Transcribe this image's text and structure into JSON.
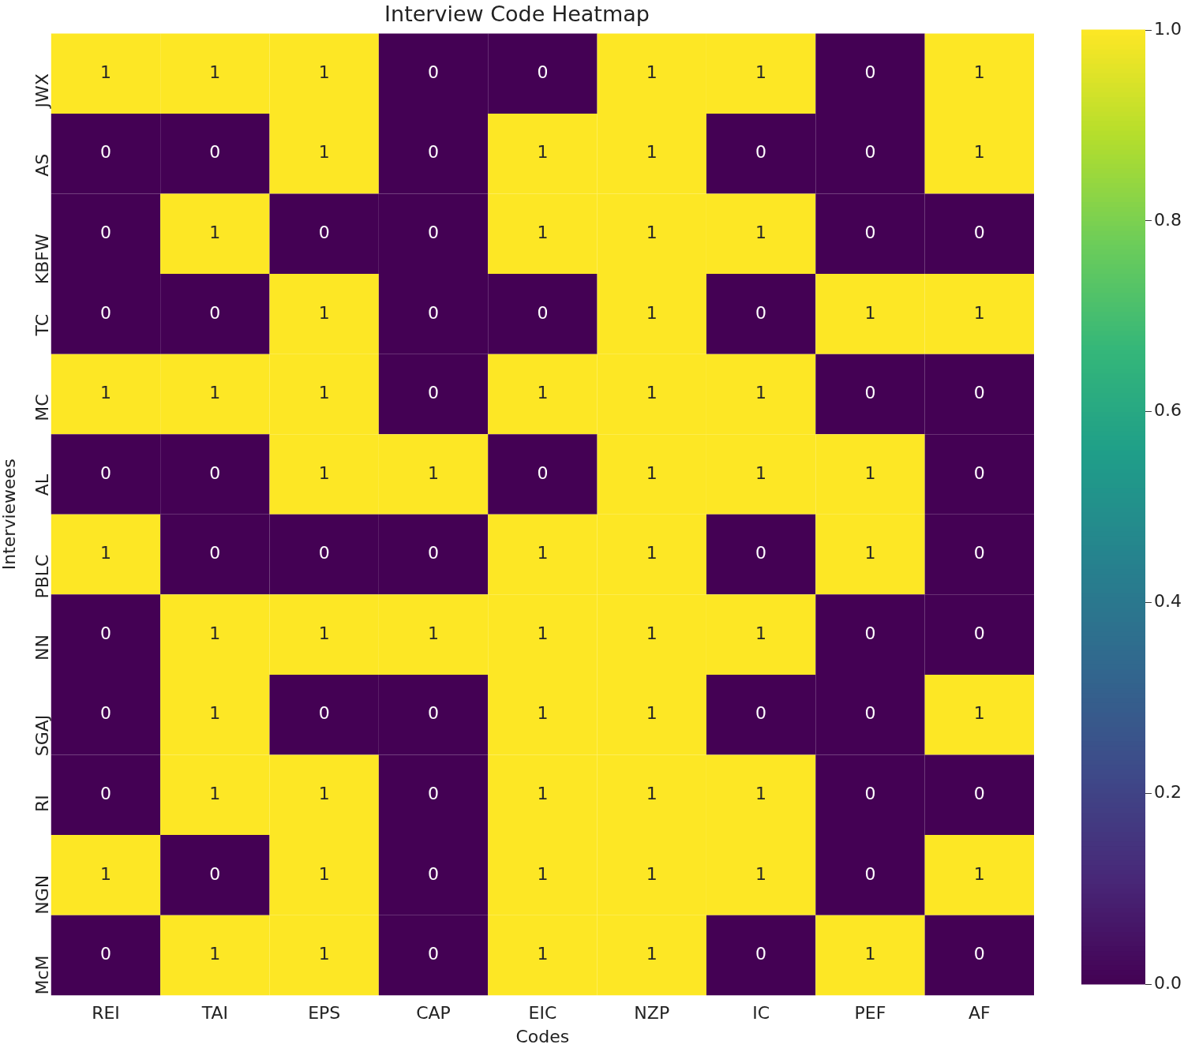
{
  "chart_data": {
    "type": "heatmap",
    "title": "Interview Code Heatmap",
    "xlabel": "Codes",
    "ylabel": "Interviewees",
    "categories": [
      "REI",
      "TAI",
      "EPS",
      "CAP",
      "EIC",
      "NZP",
      "IC",
      "PEF",
      "AF"
    ],
    "y_categories": [
      "JWX",
      "AS",
      "KBFW",
      "TC",
      "MC",
      "AL",
      "PBLC",
      "NN",
      "SGAJ",
      "RI",
      "NGN",
      "McM"
    ],
    "cells": [
      [
        1,
        1,
        1,
        0,
        0,
        1,
        1,
        0,
        1
      ],
      [
        0,
        0,
        1,
        0,
        1,
        1,
        0,
        0,
        1
      ],
      [
        0,
        1,
        0,
        0,
        1,
        1,
        1,
        0,
        0
      ],
      [
        0,
        0,
        1,
        0,
        0,
        1,
        0,
        1,
        1
      ],
      [
        1,
        1,
        1,
        0,
        1,
        1,
        1,
        0,
        0
      ],
      [
        0,
        0,
        1,
        1,
        0,
        1,
        1,
        1,
        0
      ],
      [
        1,
        0,
        0,
        0,
        1,
        1,
        0,
        1,
        0
      ],
      [
        0,
        1,
        1,
        1,
        1,
        1,
        1,
        0,
        0
      ],
      [
        0,
        1,
        0,
        0,
        1,
        1,
        0,
        0,
        1
      ],
      [
        0,
        1,
        1,
        0,
        1,
        1,
        1,
        0,
        0
      ],
      [
        1,
        0,
        1,
        0,
        1,
        1,
        1,
        0,
        1
      ],
      [
        0,
        1,
        1,
        0,
        1,
        1,
        0,
        1,
        0
      ]
    ],
    "data_labels": true,
    "clim": [
      0,
      1
    ],
    "cticks": [
      {
        "value": 0,
        "label": "0.0"
      },
      {
        "value": 0.2,
        "label": "0.2"
      },
      {
        "value": 0.4,
        "label": "0.4"
      },
      {
        "value": 0.6,
        "label": "0.6"
      },
      {
        "value": 0.8,
        "label": "0.8"
      },
      {
        "value": 1,
        "label": "1.0"
      }
    ]
  }
}
